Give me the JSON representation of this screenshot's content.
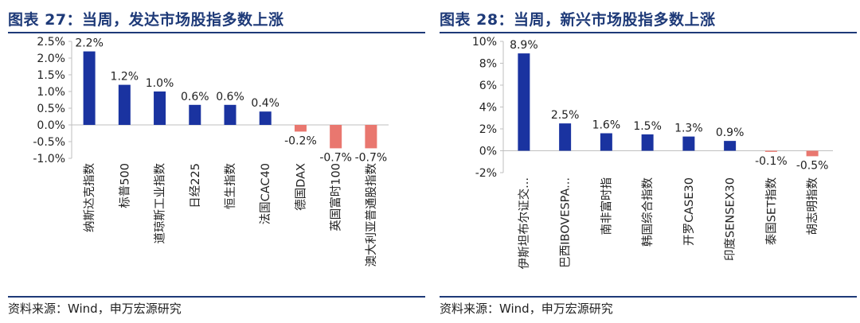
{
  "left": {
    "title": "图表 27：当周，发达市场股指多数上涨",
    "source": "资料来源：Wind，申万宏源研究"
  },
  "right": {
    "title": "图表 28：当周，新兴市场股指多数上涨",
    "source": "资料来源：Wind，申万宏源研究"
  },
  "colors": {
    "positive": "#1a33a0",
    "negative": "#e9776f",
    "title": "#1e3a78",
    "axis": "#bfbfbf"
  },
  "chart_data": [
    {
      "type": "bar",
      "categories": [
        "纳斯达克指数",
        "标普500",
        "道琼斯工业指数",
        "日经225",
        "恒生指数",
        "法国CAC40",
        "德国DAX",
        "英国富时100",
        "澳大利亚普通股指数"
      ],
      "values": [
        2.2,
        1.2,
        1.0,
        0.6,
        0.6,
        0.4,
        -0.2,
        -0.7,
        -0.7
      ],
      "data_labels": [
        "2.2%",
        "1.2%",
        "1.0%",
        "0.6%",
        "0.6%",
        "0.4%",
        "-0.2%",
        "-0.7%",
        "-0.7%"
      ],
      "ylim": [
        -1.0,
        2.5
      ],
      "yticks": [
        2.5,
        2.0,
        1.5,
        1.0,
        0.5,
        0.0,
        -0.5,
        -1.0
      ],
      "ytick_labels": [
        "2.5%",
        "2.0%",
        "1.5%",
        "1.0%",
        "0.5%",
        "0.0%",
        "-0.5%",
        "-1.0%"
      ],
      "grid": false
    },
    {
      "type": "bar",
      "categories": [
        "伊斯坦布尔证交...",
        "巴西IBOVESPA...",
        "南非富时指",
        "韩国综合指数",
        "开罗CASE30",
        "印度SENSEX30",
        "泰国SET指数",
        "胡志明指数"
      ],
      "values": [
        8.9,
        2.5,
        1.6,
        1.5,
        1.3,
        0.9,
        -0.1,
        -0.5
      ],
      "data_labels": [
        "8.9%",
        "2.5%",
        "1.6%",
        "1.5%",
        "1.3%",
        "0.9%",
        "-0.1%",
        "-0.5%"
      ],
      "ylim": [
        -2,
        10
      ],
      "yticks": [
        10,
        8,
        6,
        4,
        2,
        0,
        -2
      ],
      "ytick_labels": [
        "10%",
        "8%",
        "6%",
        "4%",
        "2%",
        "0%",
        "-2%"
      ],
      "grid": false
    }
  ]
}
